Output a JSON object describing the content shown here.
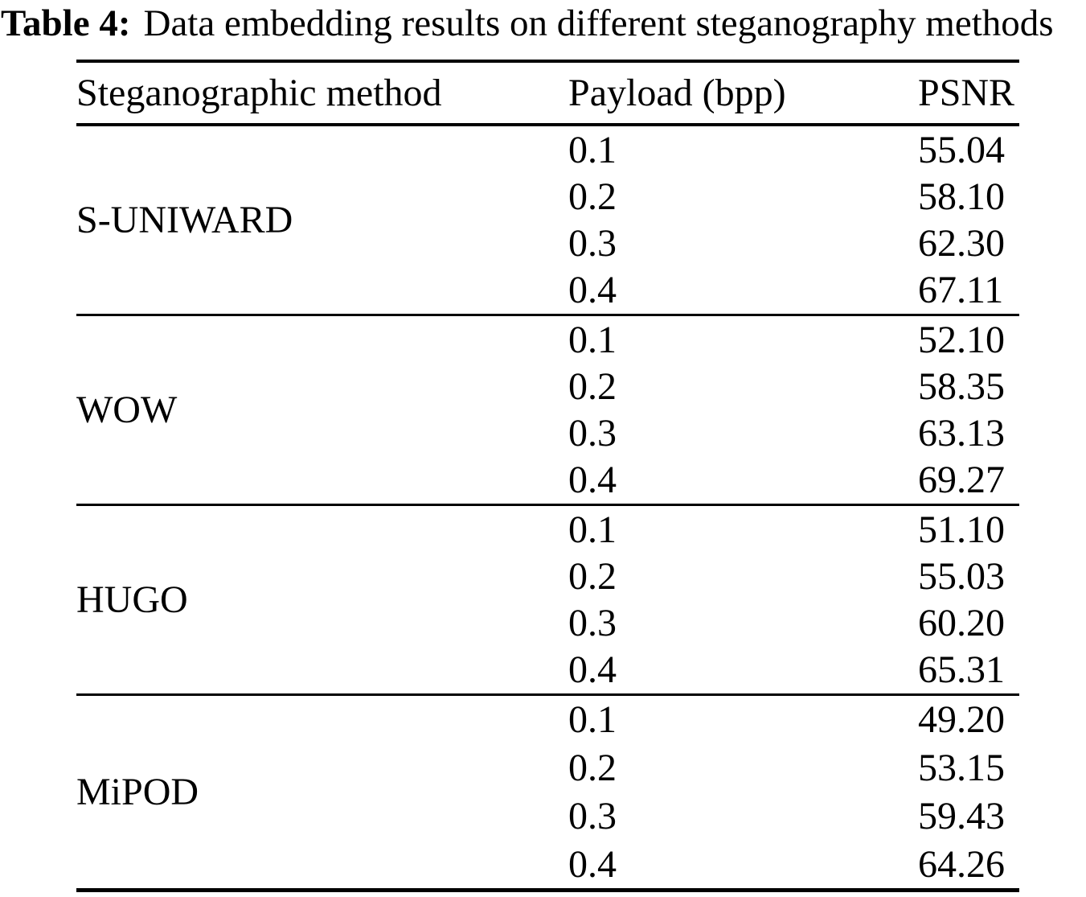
{
  "title": {
    "label": "Table 4:",
    "text": "Data embedding results on different steganography methods"
  },
  "table": {
    "col_method": "Steganographic method",
    "col_payload": "Payload (bpp)",
    "col_psnr": "PSNR",
    "groups": [
      {
        "method": "S-UNIWARD",
        "rows": [
          [
            "0.1",
            "55.04"
          ],
          [
            "0.2",
            "58.10"
          ],
          [
            "0.3",
            "62.30"
          ],
          [
            "0.4",
            "67.11"
          ]
        ]
      },
      {
        "method": "WOW",
        "rows": [
          [
            "0.1",
            "52.10"
          ],
          [
            "0.2",
            "58.35"
          ],
          [
            "0.3",
            "63.13"
          ],
          [
            "0.4",
            "69.27"
          ]
        ]
      },
      {
        "method": "HUGO",
        "rows": [
          [
            "0.1",
            "51.10"
          ],
          [
            "0.2",
            "55.03"
          ],
          [
            "0.3",
            "60.20"
          ],
          [
            "0.4",
            "65.31"
          ]
        ]
      },
      {
        "method": "MiPOD",
        "rows": [
          [
            "0.1",
            "49.20"
          ],
          [
            "0.2",
            "53.15"
          ],
          [
            "0.3",
            "59.43"
          ],
          [
            "0.4",
            "64.26"
          ]
        ]
      }
    ]
  },
  "colors": {
    "text": "#000000",
    "background": "#ffffff",
    "rule": "#000000"
  }
}
